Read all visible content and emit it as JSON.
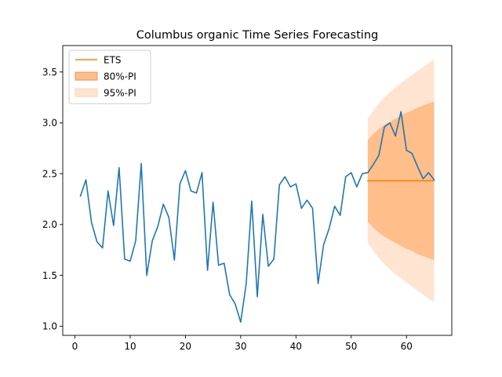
{
  "chart_data": {
    "type": "line",
    "title": "Columbus organic Time Series Forecasting",
    "xlabel": "",
    "ylabel": "",
    "xlim": [
      -2.2,
      68.2
    ],
    "ylim": [
      0.91,
      3.76
    ],
    "x_ticks": [
      0,
      10,
      20,
      30,
      40,
      50,
      60
    ],
    "y_ticks": [
      1.0,
      1.5,
      2.0,
      2.5,
      3.0,
      3.5
    ],
    "x_tick_labels": [
      "0",
      "10",
      "20",
      "30",
      "40",
      "50",
      "60"
    ],
    "y_tick_labels": [
      "1.0",
      "1.5",
      "2.0",
      "2.5",
      "3.0",
      "3.5"
    ],
    "grid": false,
    "legend_position": "top-left",
    "legend": [
      {
        "label": "ETS",
        "kind": "line",
        "color": "#ff7f0e"
      },
      {
        "label": "80%-PI",
        "kind": "patch",
        "color": "#ffbe8a",
        "edge": "#e8955a"
      },
      {
        "label": "95%-PI",
        "kind": "patch",
        "color": "#ffe4d1",
        "edge": "#ffd3b5"
      }
    ],
    "series": [
      {
        "color": "#1f77b4",
        "x": [
          1,
          2,
          3,
          4,
          5,
          6,
          7,
          8,
          9,
          10,
          11,
          12,
          13,
          14,
          15,
          16,
          17,
          18,
          19,
          20,
          21,
          22,
          23,
          24,
          25,
          26,
          27,
          28,
          29,
          30,
          31,
          32,
          33,
          34,
          35,
          36,
          37,
          38,
          39,
          40,
          41,
          42,
          43,
          44,
          45,
          46,
          47,
          48,
          49,
          50,
          51,
          52,
          53,
          54,
          55,
          56,
          57,
          58,
          59,
          60,
          61,
          62,
          63,
          64,
          65
        ],
        "y": [
          2.28,
          2.44,
          2.02,
          1.83,
          1.77,
          2.33,
          1.99,
          2.56,
          1.66,
          1.64,
          1.84,
          2.6,
          1.5,
          1.84,
          1.98,
          2.2,
          2.07,
          1.65,
          2.4,
          2.53,
          2.33,
          2.31,
          2.51,
          1.55,
          2.22,
          1.6,
          1.62,
          1.31,
          1.22,
          1.04,
          1.42,
          2.23,
          1.29,
          2.1,
          1.59,
          1.66,
          2.39,
          2.47,
          2.37,
          2.4,
          2.16,
          2.24,
          2.16,
          1.42,
          1.8,
          1.96,
          2.18,
          2.09,
          2.47,
          2.51,
          2.37,
          2.5,
          2.51,
          2.59,
          2.68,
          2.96,
          3.0,
          2.87,
          3.11,
          2.73,
          2.7,
          2.57,
          2.45,
          2.51,
          2.44
        ]
      },
      {
        "name": "ETS",
        "color": "#ff7f0e",
        "x": [
          53,
          65
        ],
        "y": [
          2.43,
          2.43
        ]
      }
    ],
    "bands": [
      {
        "name": "95%-PI",
        "color": "#ffe4d1",
        "x": [
          53,
          54,
          55,
          56,
          57,
          58,
          59,
          60,
          61,
          62,
          63,
          64,
          65
        ],
        "lower": [
          1.82,
          1.74,
          1.67,
          1.61,
          1.56,
          1.51,
          1.47,
          1.43,
          1.39,
          1.35,
          1.31,
          1.27,
          1.24
        ],
        "upper": [
          3.04,
          3.12,
          3.19,
          3.25,
          3.3,
          3.35,
          3.39,
          3.43,
          3.47,
          3.51,
          3.55,
          3.59,
          3.62
        ]
      },
      {
        "name": "80%-PI",
        "color": "#ffbe8a",
        "x": [
          53,
          54,
          55,
          56,
          57,
          58,
          59,
          60,
          61,
          62,
          63,
          64,
          65
        ],
        "lower": [
          2.03,
          1.97,
          1.92,
          1.88,
          1.85,
          1.82,
          1.79,
          1.76,
          1.74,
          1.71,
          1.69,
          1.67,
          1.65
        ],
        "upper": [
          2.83,
          2.89,
          2.94,
          2.98,
          3.01,
          3.04,
          3.07,
          3.1,
          3.12,
          3.15,
          3.17,
          3.19,
          3.21
        ]
      }
    ]
  }
}
